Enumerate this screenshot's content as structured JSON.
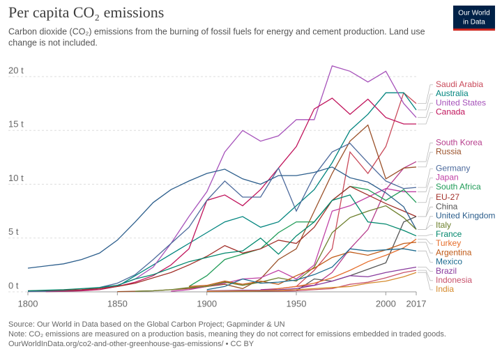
{
  "chart_data": {
    "type": "line",
    "title": "Per capita CO₂ emissions",
    "subtitle": [
      "Carbon dioxide (CO₂) emissions from the burning of fossil fuels for energy and cement production. Land use",
      "change is not included."
    ],
    "source": "Source: Our World in Data based on the Global Carbon Project; Gapminder & UN",
    "note": "Note: CO₂ emissions are measured on a production basis, meaning they do not correct for emissions embedded in traded goods.",
    "url": "OurWorldInData.org/co2-and-other-greenhouse-gas-emissions/ • CC BY",
    "logo": [
      "Our World",
      "in Data"
    ],
    "x": [
      1800,
      1810,
      1820,
      1830,
      1840,
      1850,
      1860,
      1870,
      1880,
      1890,
      1900,
      1910,
      1920,
      1930,
      1940,
      1950,
      1960,
      1970,
      1980,
      1990,
      2000,
      2010,
      2017
    ],
    "xlim": [
      1800,
      2017
    ],
    "xticks": [
      1800,
      1850,
      1900,
      1950,
      2000,
      2017
    ],
    "ylim": [
      0,
      20
    ],
    "yticks": [
      {
        "value": 0,
        "label": "0 t"
      },
      {
        "value": 5,
        "label": "5 t"
      },
      {
        "value": 10,
        "label": "10 t"
      },
      {
        "value": 15,
        "label": "15 t"
      },
      {
        "value": 20,
        "label": "20 t"
      }
    ],
    "grid": true,
    "series": [
      {
        "name": "Saudi Arabia",
        "color": "#c94a5a",
        "values": [
          null,
          null,
          null,
          null,
          null,
          null,
          null,
          null,
          null,
          null,
          null,
          null,
          null,
          null,
          null,
          0.5,
          2.0,
          4.0,
          13.0,
          11.0,
          13.5,
          18.5,
          17.5
        ]
      },
      {
        "name": "Australia",
        "color": "#00847e",
        "values": [
          null,
          null,
          null,
          null,
          null,
          0.5,
          1.5,
          2.5,
          3.5,
          4.5,
          5.5,
          6.5,
          7.0,
          6.0,
          6.5,
          8.0,
          9.5,
          12.0,
          15.0,
          16.5,
          18.5,
          18.5,
          16.9
        ]
      },
      {
        "name": "United States",
        "color": "#a652ba",
        "values": [
          0.03,
          0.05,
          0.08,
          0.15,
          0.3,
          0.6,
          1.2,
          2.3,
          4.5,
          7.0,
          9.3,
          13.0,
          15.0,
          14.0,
          14.5,
          16.0,
          16.0,
          21.0,
          20.5,
          19.5,
          20.5,
          17.5,
          16.2
        ]
      },
      {
        "name": "Canada",
        "color": "#c0135b",
        "values": [
          null,
          0.02,
          0.05,
          0.1,
          0.2,
          0.5,
          0.9,
          1.5,
          2.5,
          4.0,
          8.5,
          9.0,
          8.0,
          9.5,
          11.5,
          13.5,
          17.0,
          18.0,
          16.5,
          17.9,
          16.2,
          15.6,
          15.6
        ]
      },
      {
        "name": "South Korea",
        "color": "#b63d8c",
        "values": [
          null,
          null,
          null,
          null,
          null,
          null,
          null,
          null,
          null,
          null,
          null,
          null,
          null,
          0.2,
          0.3,
          0.5,
          0.6,
          1.8,
          4.0,
          5.8,
          9.5,
          11.5,
          12.1
        ]
      },
      {
        "name": "Russia",
        "color": "#9a5129",
        "values": [
          null,
          null,
          null,
          null,
          null,
          0.02,
          0.05,
          0.1,
          0.2,
          0.3,
          0.5,
          0.7,
          0.3,
          1.2,
          3.0,
          4.0,
          7.5,
          11.0,
          14.0,
          15.5,
          10.5,
          11.5,
          11.6
        ]
      },
      {
        "name": "Germany",
        "color": "#4c6a9c",
        "values": [
          0.03,
          0.05,
          0.1,
          0.2,
          0.4,
          0.8,
          1.6,
          3.0,
          4.5,
          6.0,
          8.5,
          10.3,
          8.8,
          8.8,
          11.5,
          7.5,
          10.8,
          13.0,
          13.8,
          12.0,
          10.3,
          9.6,
          9.7
        ]
      },
      {
        "name": "Japan",
        "color": "#bf3fa4",
        "values": [
          null,
          null,
          null,
          null,
          null,
          null,
          null,
          null,
          0.05,
          0.2,
          0.5,
          0.8,
          1.2,
          1.3,
          2.0,
          1.2,
          2.5,
          7.5,
          8.0,
          8.8,
          9.6,
          9.3,
          9.3
        ]
      },
      {
        "name": "South Africa",
        "color": "#1f9b57",
        "values": [
          null,
          null,
          null,
          null,
          null,
          null,
          null,
          null,
          null,
          0.5,
          1.5,
          3.0,
          3.5,
          4.0,
          5.5,
          6.5,
          6.5,
          8.5,
          9.8,
          9.5,
          8.5,
          9.5,
          8.3
        ]
      },
      {
        "name": "EU-27",
        "color": "#a2302a",
        "values": [
          0.1,
          0.12,
          0.15,
          0.2,
          0.3,
          0.5,
          0.8,
          1.3,
          1.8,
          2.5,
          3.3,
          4.3,
          3.6,
          4.0,
          4.8,
          4.5,
          6.0,
          8.5,
          9.8,
          9.0,
          8.2,
          7.5,
          7.0
        ]
      },
      {
        "name": "China",
        "color": "#555555",
        "values": [
          null,
          null,
          null,
          null,
          null,
          null,
          null,
          null,
          null,
          null,
          0.01,
          0.02,
          0.03,
          0.04,
          0.05,
          0.1,
          1.2,
          1.0,
          1.5,
          2.1,
          2.7,
          6.5,
          7.0
        ]
      },
      {
        "name": "United Kingdom",
        "color": "#2c5e8c",
        "values": [
          2.2,
          2.4,
          2.6,
          3.0,
          3.6,
          4.8,
          6.5,
          8.3,
          9.5,
          10.3,
          11.0,
          11.4,
          10.5,
          10.0,
          10.8,
          10.8,
          11.1,
          11.6,
          10.6,
          10.2,
          9.2,
          7.9,
          5.8
        ]
      },
      {
        "name": "Italy",
        "color": "#6b7e2a",
        "values": [
          null,
          null,
          null,
          null,
          null,
          null,
          0.05,
          0.1,
          0.2,
          0.4,
          0.5,
          0.9,
          0.6,
          0.9,
          1.3,
          1.0,
          2.3,
          5.5,
          6.9,
          7.5,
          8.0,
          6.9,
          5.8
        ]
      },
      {
        "name": "France",
        "color": "#00876c",
        "values": [
          0.1,
          0.15,
          0.2,
          0.3,
          0.4,
          0.6,
          1.2,
          1.6,
          2.2,
          2.8,
          3.2,
          3.6,
          3.8,
          5.0,
          3.5,
          5.2,
          6.5,
          8.5,
          9.0,
          6.5,
          6.3,
          5.7,
          5.2
        ]
      },
      {
        "name": "Turkey",
        "color": "#e56e2c",
        "values": [
          null,
          null,
          null,
          null,
          null,
          null,
          null,
          null,
          null,
          null,
          null,
          null,
          null,
          0.1,
          0.3,
          0.5,
          0.8,
          1.3,
          2.0,
          2.8,
          3.4,
          4.1,
          4.9
        ]
      },
      {
        "name": "Argentina",
        "color": "#c05a17",
        "values": [
          null,
          null,
          null,
          null,
          null,
          null,
          null,
          null,
          null,
          0.5,
          0.6,
          1.0,
          0.7,
          1.0,
          0.7,
          1.5,
          2.2,
          3.2,
          3.7,
          3.4,
          3.9,
          4.5,
          4.6
        ]
      },
      {
        "name": "Mexico",
        "color": "#1c6a8f",
        "values": [
          null,
          null,
          null,
          null,
          null,
          null,
          null,
          null,
          null,
          null,
          0.2,
          0.5,
          1.2,
          0.8,
          0.9,
          1.1,
          1.6,
          2.3,
          4.0,
          3.8,
          3.9,
          4.0,
          3.8
        ]
      },
      {
        "name": "Brazil",
        "color": "#883a9d",
        "values": [
          null,
          null,
          null,
          null,
          null,
          null,
          null,
          null,
          null,
          null,
          0.1,
          0.12,
          0.15,
          0.15,
          0.2,
          0.3,
          0.6,
          1.0,
          1.5,
          1.4,
          1.8,
          2.1,
          2.3
        ]
      },
      {
        "name": "Indonesia",
        "color": "#c7516b",
        "values": [
          null,
          null,
          null,
          null,
          null,
          null,
          null,
          null,
          null,
          null,
          0.05,
          0.06,
          0.08,
          0.09,
          0.08,
          0.1,
          0.2,
          0.3,
          0.7,
          0.9,
          1.3,
          1.8,
          2.0
        ]
      },
      {
        "name": "India",
        "color": "#d58a2b",
        "values": [
          null,
          null,
          null,
          null,
          null,
          null,
          null,
          null,
          null,
          null,
          0.05,
          0.07,
          0.08,
          0.1,
          0.12,
          0.2,
          0.3,
          0.4,
          0.5,
          0.8,
          1.0,
          1.4,
          1.8
        ]
      }
    ]
  }
}
